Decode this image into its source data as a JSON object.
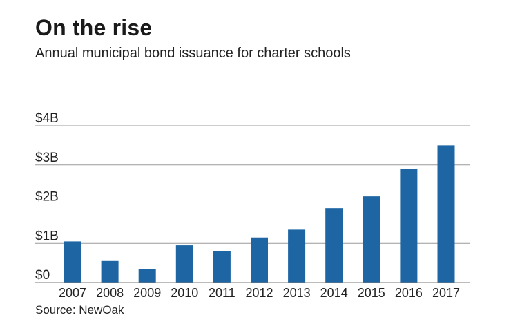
{
  "title": "On the rise",
  "subtitle": "Annual municipal bond issuance for charter schools",
  "source": "Source: NewOak",
  "colors": {
    "bar": "#1d66a3",
    "grid": "#9a9a9a",
    "baseline": "#7a7a7a"
  },
  "chart_data": {
    "type": "bar",
    "title": "On the rise",
    "subtitle": "Annual municipal bond issuance for charter schools",
    "xlabel": "",
    "ylabel": "",
    "categories": [
      "2007",
      "2008",
      "2009",
      "2010",
      "2011",
      "2012",
      "2013",
      "2014",
      "2015",
      "2016",
      "2017"
    ],
    "values": [
      1.05,
      0.55,
      0.35,
      0.95,
      0.8,
      1.15,
      1.35,
      1.9,
      2.2,
      2.9,
      3.5
    ],
    "unit": "billion USD",
    "ylim": [
      0,
      4
    ],
    "yticks": [
      {
        "value": 0,
        "label": "$0"
      },
      {
        "value": 1,
        "label": "$1B"
      },
      {
        "value": 2,
        "label": "$2B"
      },
      {
        "value": 3,
        "label": "$3B"
      },
      {
        "value": 4,
        "label": "$4B"
      }
    ],
    "grid": true,
    "legend": "none"
  }
}
